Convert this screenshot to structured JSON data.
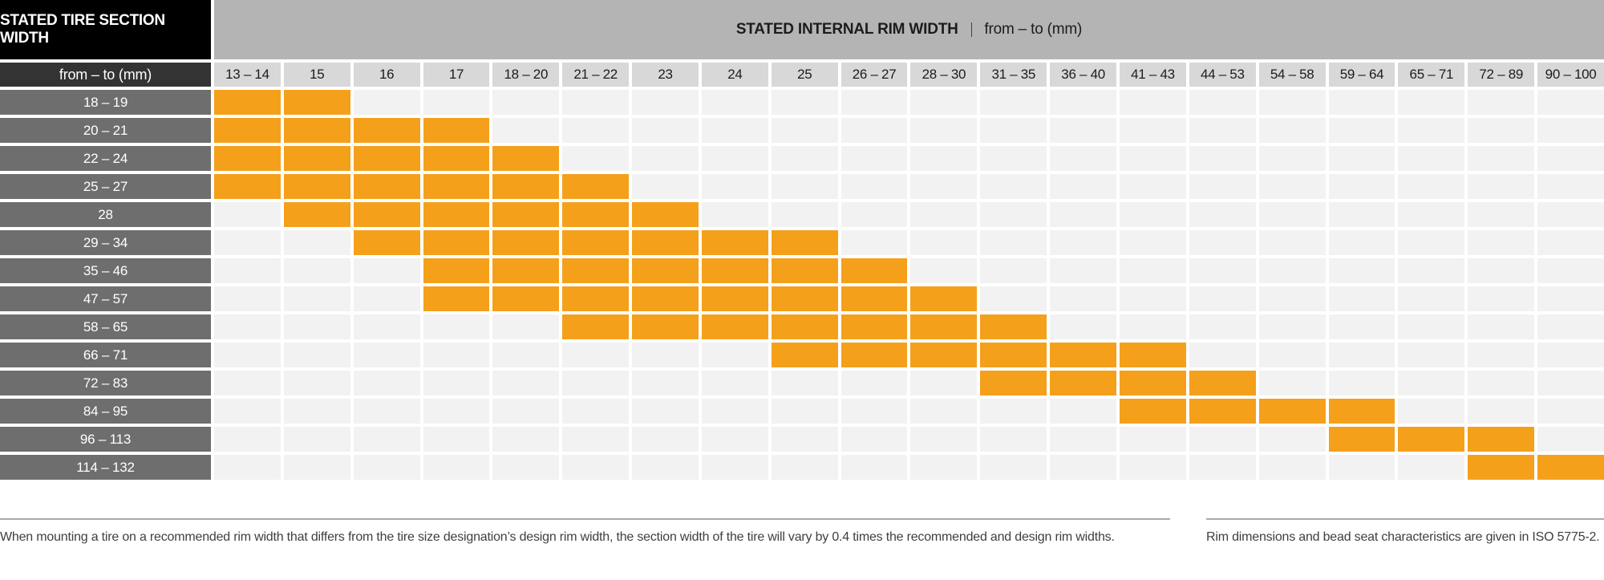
{
  "header": {
    "tire_section_title": "STATED TIRE SECTION WIDTH",
    "rim_width_title": "STATED INTERNAL RIM WIDTH",
    "separator": "|",
    "rim_width_subtitle": "from – to (mm)",
    "row_header_label": "from – to (mm)"
  },
  "footnotes": {
    "left": "When mounting a tire on a recommended rim width that differs from the tire size designation’s design rim width, the section width of the tire will vary by 0.4 times the recommended and design rim widths.",
    "right": "Rim dimensions and bead seat characteristics are given in ISO 5775-2."
  },
  "colors": {
    "marked_cell": "#F5A01B",
    "empty_cell": "#F2F2F2",
    "column_header_bg": "#D8D8D8",
    "rim_header_bg": "#B4B4B4",
    "row_label_bg": "#6E6E6E",
    "corner_bg": "#000000",
    "row_header_corner_bg": "#333333"
  },
  "chart_data": {
    "type": "heatmap",
    "title": "Tire section width vs internal rim width compatibility",
    "xlabel": "STATED INTERNAL RIM WIDTH from – to (mm)",
    "ylabel": "STATED TIRE SECTION WIDTH from – to (mm)",
    "legend_position": "none",
    "grid": true,
    "x_categories": [
      "13 – 14",
      "15",
      "16",
      "17",
      "18 – 20",
      "21 – 22",
      "23",
      "24",
      "25",
      "26 – 27",
      "28 – 30",
      "31 – 35",
      "36 – 40",
      "41 – 43",
      "44 – 53",
      "54 – 58",
      "59 – 64",
      "65 – 71",
      "72 – 89",
      "90 – 100"
    ],
    "y_categories": [
      "18 – 19",
      "20 – 21",
      "22 – 24",
      "25 – 27",
      "28",
      "29 – 34",
      "35 – 46",
      "47 – 57",
      "58 – 65",
      "66 – 71",
      "72 – 83",
      "84 – 95",
      "96 – 113",
      "114 – 132"
    ],
    "values": [
      [
        1,
        1,
        0,
        0,
        0,
        0,
        0,
        0,
        0,
        0,
        0,
        0,
        0,
        0,
        0,
        0,
        0,
        0,
        0,
        0
      ],
      [
        1,
        1,
        1,
        1,
        0,
        0,
        0,
        0,
        0,
        0,
        0,
        0,
        0,
        0,
        0,
        0,
        0,
        0,
        0,
        0
      ],
      [
        1,
        1,
        1,
        1,
        1,
        0,
        0,
        0,
        0,
        0,
        0,
        0,
        0,
        0,
        0,
        0,
        0,
        0,
        0,
        0
      ],
      [
        1,
        1,
        1,
        1,
        1,
        1,
        0,
        0,
        0,
        0,
        0,
        0,
        0,
        0,
        0,
        0,
        0,
        0,
        0,
        0
      ],
      [
        0,
        1,
        1,
        1,
        1,
        1,
        1,
        0,
        0,
        0,
        0,
        0,
        0,
        0,
        0,
        0,
        0,
        0,
        0,
        0
      ],
      [
        0,
        0,
        1,
        1,
        1,
        1,
        1,
        1,
        1,
        0,
        0,
        0,
        0,
        0,
        0,
        0,
        0,
        0,
        0,
        0
      ],
      [
        0,
        0,
        0,
        1,
        1,
        1,
        1,
        1,
        1,
        1,
        0,
        0,
        0,
        0,
        0,
        0,
        0,
        0,
        0,
        0
      ],
      [
        0,
        0,
        0,
        1,
        1,
        1,
        1,
        1,
        1,
        1,
        1,
        0,
        0,
        0,
        0,
        0,
        0,
        0,
        0,
        0
      ],
      [
        0,
        0,
        0,
        0,
        0,
        1,
        1,
        1,
        1,
        1,
        1,
        1,
        0,
        0,
        0,
        0,
        0,
        0,
        0,
        0
      ],
      [
        0,
        0,
        0,
        0,
        0,
        0,
        0,
        0,
        1,
        1,
        1,
        1,
        1,
        1,
        0,
        0,
        0,
        0,
        0,
        0
      ],
      [
        0,
        0,
        0,
        0,
        0,
        0,
        0,
        0,
        0,
        0,
        0,
        1,
        1,
        1,
        1,
        0,
        0,
        0,
        0,
        0
      ],
      [
        0,
        0,
        0,
        0,
        0,
        0,
        0,
        0,
        0,
        0,
        0,
        0,
        0,
        1,
        1,
        1,
        1,
        0,
        0,
        0
      ],
      [
        0,
        0,
        0,
        0,
        0,
        0,
        0,
        0,
        0,
        0,
        0,
        0,
        0,
        0,
        0,
        0,
        1,
        1,
        1,
        0
      ],
      [
        0,
        0,
        0,
        0,
        0,
        0,
        0,
        0,
        0,
        0,
        0,
        0,
        0,
        0,
        0,
        0,
        0,
        0,
        1,
        1
      ]
    ]
  }
}
